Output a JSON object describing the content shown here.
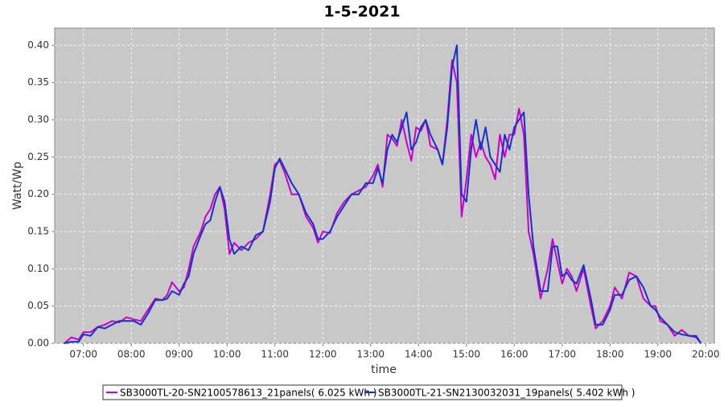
{
  "chart_data": {
    "type": "line",
    "title": "1-5-2021",
    "x_label": "time",
    "y_label": "Watt/Wp",
    "xlim": [
      6.4,
      20.18
    ],
    "ylim": [
      0,
      0.423
    ],
    "xticks": [
      {
        "value": 7,
        "label": "07:00"
      },
      {
        "value": 8,
        "label": "08:00"
      },
      {
        "value": 9,
        "label": "09:00"
      },
      {
        "value": 10,
        "label": "10:00"
      },
      {
        "value": 11,
        "label": "11:00"
      },
      {
        "value": 12,
        "label": "12:00"
      },
      {
        "value": 13,
        "label": "13:00"
      },
      {
        "value": 14,
        "label": "14:00"
      },
      {
        "value": 15,
        "label": "15:00"
      },
      {
        "value": 16,
        "label": "16:00"
      },
      {
        "value": 17,
        "label": "17:00"
      },
      {
        "value": 18,
        "label": "18:00"
      },
      {
        "value": 19,
        "label": "19:00"
      },
      {
        "value": 20,
        "label": "20:00"
      }
    ],
    "yticks": [
      {
        "value": 0,
        "label": "0.00"
      },
      {
        "value": 0.05,
        "label": "0.05"
      },
      {
        "value": 0.1,
        "label": "0.10"
      },
      {
        "value": 0.15,
        "label": "0.15"
      },
      {
        "value": 0.2,
        "label": "0.20"
      },
      {
        "value": 0.25,
        "label": "0.25"
      },
      {
        "value": 0.3,
        "label": "0.30"
      },
      {
        "value": 0.35,
        "label": "0.35"
      },
      {
        "value": 0.4,
        "label": "0.40"
      }
    ],
    "grid": true,
    "legend": "bottom",
    "x": [
      6.6,
      6.75,
      6.9,
      7.0,
      7.15,
      7.3,
      7.45,
      7.6,
      7.75,
      7.9,
      8.05,
      8.2,
      8.35,
      8.5,
      8.65,
      8.75,
      8.85,
      9.0,
      9.1,
      9.2,
      9.3,
      9.45,
      9.55,
      9.65,
      9.75,
      9.85,
      9.95,
      10.05,
      10.15,
      10.3,
      10.45,
      10.6,
      10.75,
      10.9,
      11.0,
      11.1,
      11.2,
      11.35,
      11.5,
      11.65,
      11.8,
      11.9,
      12.0,
      12.15,
      12.3,
      12.45,
      12.6,
      12.75,
      12.9,
      13.05,
      13.15,
      13.25,
      13.35,
      13.45,
      13.55,
      13.65,
      13.75,
      13.85,
      13.95,
      14.05,
      14.15,
      14.25,
      14.4,
      14.5,
      14.6,
      14.7,
      14.8,
      14.9,
      15.0,
      15.1,
      15.2,
      15.3,
      15.4,
      15.5,
      15.6,
      15.7,
      15.8,
      15.9,
      16.0,
      16.1,
      16.2,
      16.3,
      16.4,
      16.55,
      16.7,
      16.8,
      16.9,
      17.0,
      17.1,
      17.2,
      17.3,
      17.45,
      17.6,
      17.7,
      17.85,
      18.0,
      18.1,
      18.25,
      18.4,
      18.55,
      18.7,
      18.85,
      18.95,
      19.05,
      19.2,
      19.35,
      19.5,
      19.65,
      19.8,
      19.9
    ],
    "series": [
      {
        "name": "SB3000TL-20-SN2100578613_21panels( 6.025 kWh )",
        "color": "#cc00cc",
        "values": [
          0,
          0.008,
          0.005,
          0.015,
          0.015,
          0.022,
          0.025,
          0.03,
          0.028,
          0.035,
          0.032,
          0.03,
          0.045,
          0.06,
          0.058,
          0.065,
          0.082,
          0.07,
          0.075,
          0.1,
          0.13,
          0.15,
          0.17,
          0.18,
          0.2,
          0.21,
          0.18,
          0.12,
          0.135,
          0.125,
          0.135,
          0.14,
          0.15,
          0.2,
          0.24,
          0.245,
          0.23,
          0.2,
          0.2,
          0.17,
          0.155,
          0.135,
          0.15,
          0.148,
          0.175,
          0.19,
          0.2,
          0.205,
          0.21,
          0.225,
          0.24,
          0.21,
          0.28,
          0.275,
          0.265,
          0.3,
          0.27,
          0.245,
          0.29,
          0.285,
          0.3,
          0.265,
          0.26,
          0.24,
          0.3,
          0.38,
          0.35,
          0.17,
          0.22,
          0.28,
          0.25,
          0.27,
          0.25,
          0.24,
          0.22,
          0.28,
          0.25,
          0.28,
          0.28,
          0.315,
          0.28,
          0.15,
          0.12,
          0.06,
          0.1,
          0.14,
          0.11,
          0.08,
          0.1,
          0.09,
          0.07,
          0.1,
          0.05,
          0.02,
          0.03,
          0.05,
          0.075,
          0.06,
          0.095,
          0.09,
          0.06,
          0.05,
          0.05,
          0.03,
          0.025,
          0.01,
          0.018,
          0.01,
          0.008,
          0
        ]
      },
      {
        "name": "SB3000TL-21-SN2130032031_19panels( 5.402 kWh )",
        "color": "#1133cc",
        "values": [
          0,
          0.002,
          0.002,
          0.012,
          0.01,
          0.022,
          0.02,
          0.025,
          0.03,
          0.03,
          0.03,
          0.025,
          0.04,
          0.058,
          0.058,
          0.06,
          0.07,
          0.065,
          0.08,
          0.09,
          0.12,
          0.145,
          0.16,
          0.165,
          0.19,
          0.21,
          0.19,
          0.14,
          0.12,
          0.13,
          0.125,
          0.145,
          0.15,
          0.19,
          0.235,
          0.248,
          0.235,
          0.215,
          0.2,
          0.175,
          0.16,
          0.14,
          0.14,
          0.15,
          0.17,
          0.185,
          0.2,
          0.2,
          0.215,
          0.215,
          0.235,
          0.215,
          0.26,
          0.28,
          0.27,
          0.29,
          0.31,
          0.26,
          0.27,
          0.29,
          0.3,
          0.28,
          0.26,
          0.24,
          0.29,
          0.37,
          0.4,
          0.2,
          0.19,
          0.26,
          0.3,
          0.26,
          0.29,
          0.25,
          0.24,
          0.23,
          0.28,
          0.26,
          0.29,
          0.3,
          0.31,
          0.2,
          0.13,
          0.07,
          0.07,
          0.13,
          0.13,
          0.09,
          0.095,
          0.085,
          0.08,
          0.105,
          0.06,
          0.025,
          0.025,
          0.045,
          0.065,
          0.065,
          0.085,
          0.09,
          0.075,
          0.05,
          0.045,
          0.035,
          0.025,
          0.015,
          0.012,
          0.01,
          0.01,
          0
        ]
      }
    ]
  }
}
